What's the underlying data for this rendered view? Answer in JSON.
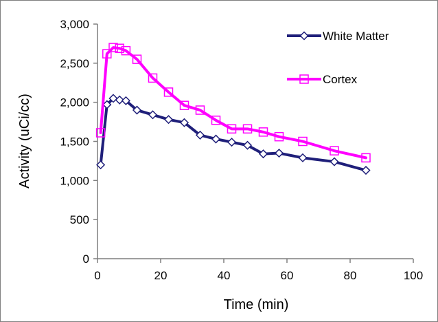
{
  "chart_data": {
    "type": "line",
    "title": "",
    "xlabel": "Time (min)",
    "ylabel": "Activity (uCi/cc)",
    "xlim": [
      0,
      100
    ],
    "ylim": [
      0,
      3000
    ],
    "xticks": [
      "0",
      "20",
      "40",
      "60",
      "80",
      "100"
    ],
    "yticks": [
      "0",
      "500",
      "1,000",
      "1,500",
      "2,000",
      "2,500",
      "3,000"
    ],
    "xtick_values": [
      0,
      20,
      40,
      60,
      80,
      100
    ],
    "ytick_values": [
      0,
      500,
      1000,
      1500,
      2000,
      2500,
      3000
    ],
    "grid": false,
    "legend_position": "top-right",
    "series": [
      {
        "name": "White Matter",
        "color": "#1f1f7a",
        "marker": "diamond",
        "x": [
          1,
          3,
          5,
          7,
          9,
          12.5,
          17.5,
          22.5,
          27.5,
          32.5,
          37.5,
          42.5,
          47.5,
          52.5,
          57.5,
          65,
          75,
          85
        ],
        "y": [
          1200,
          1970,
          2050,
          2030,
          2020,
          1900,
          1840,
          1780,
          1740,
          1580,
          1530,
          1490,
          1450,
          1340,
          1350,
          1290,
          1240,
          1130
        ]
      },
      {
        "name": "Cortex",
        "color": "#ff00ff",
        "marker": "square",
        "x": [
          1,
          3,
          5,
          7,
          9,
          12.5,
          17.5,
          22.5,
          27.5,
          32.5,
          37.5,
          42.5,
          47.5,
          52.5,
          57.5,
          65,
          75,
          85
        ],
        "y": [
          1610,
          2620,
          2700,
          2690,
          2660,
          2550,
          2310,
          2130,
          1960,
          1900,
          1770,
          1660,
          1660,
          1620,
          1560,
          1500,
          1380,
          1290
        ]
      }
    ]
  }
}
